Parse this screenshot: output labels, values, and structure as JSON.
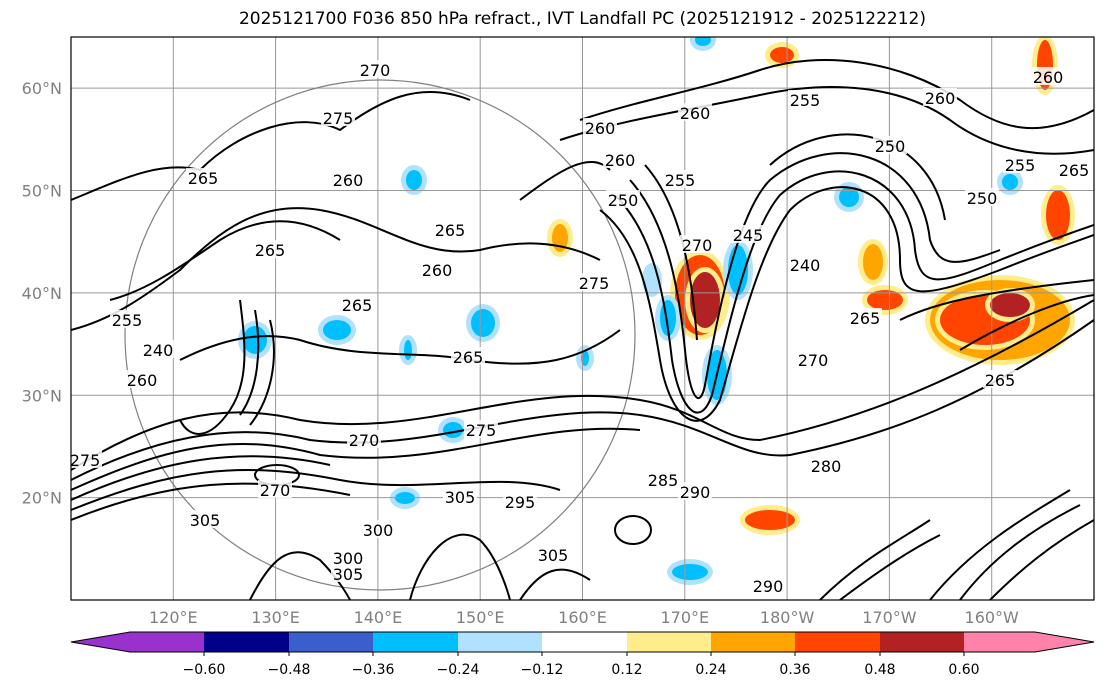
{
  "chart_data": {
    "type": "contour-map",
    "title": "2025121700 F036 850 hPa refract., IVT Landfall PC (2025121912 - 2025122212)",
    "lon_ticks": [
      "120°E",
      "130°E",
      "140°E",
      "150°E",
      "160°E",
      "170°E",
      "180°W",
      "170°W",
      "160°W"
    ],
    "lat_ticks": [
      "60°N",
      "50°N",
      "40°N",
      "30°N",
      "20°N"
    ],
    "lon_range": [
      110,
      210
    ],
    "lat_range": [
      10,
      65
    ],
    "grid": true,
    "colorbar": {
      "levels": [
        "−0.60",
        "−0.48",
        "−0.36",
        "−0.24",
        "−0.12",
        "0.12",
        "0.24",
        "0.36",
        "0.48",
        "0.60"
      ],
      "colors": [
        "#9932cc",
        "#00008b",
        "#3a5fcd",
        "#00bfff",
        "#b0e2ff",
        "#ffffff",
        "#ffec8b",
        "#ffa500",
        "#ff4500",
        "#b22222",
        "#ff82ab"
      ],
      "extend": "both",
      "placement": "bottom"
    },
    "contour_labels": [
      "270",
      "275",
      "265",
      "260",
      "265",
      "260",
      "265",
      "275",
      "265",
      "265",
      "255",
      "260",
      "240",
      "270",
      "275",
      "270",
      "305",
      "295",
      "305",
      "300",
      "300",
      "305",
      "285",
      "290",
      "280",
      "270",
      "265",
      "260",
      "255",
      "260",
      "250",
      "250",
      "260",
      "255",
      "265",
      "260",
      "260",
      "250",
      "255",
      "270",
      "245",
      "240",
      "265",
      "275",
      "305",
      "290"
    ]
  }
}
